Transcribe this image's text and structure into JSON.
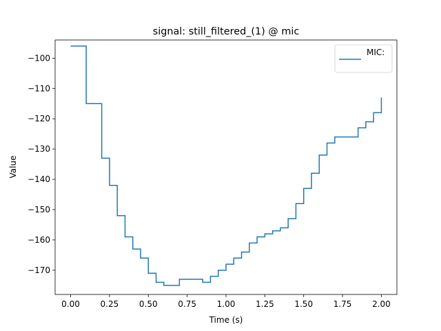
{
  "chart_data": {
    "type": "line",
    "title": "signal: still_filtered_(1) @ mic",
    "xlabel": "Time (s)",
    "ylabel": "Value",
    "xlim": [
      -0.1,
      2.1
    ],
    "ylim": [
      -178,
      -94
    ],
    "x_ticks": [
      0.0,
      0.25,
      0.5,
      0.75,
      1.0,
      1.25,
      1.5,
      1.75,
      2.0
    ],
    "x_tick_labels": [
      "0.00",
      "0.25",
      "0.50",
      "0.75",
      "1.00",
      "1.25",
      "1.50",
      "1.75",
      "2.00"
    ],
    "y_ticks": [
      -100,
      -110,
      -120,
      -130,
      -140,
      -150,
      -160,
      -170
    ],
    "y_tick_labels": [
      "−100",
      "−110",
      "−120",
      "−130",
      "−140",
      "−150",
      "−160",
      "−170"
    ],
    "grid": false,
    "legend_position": "top-right",
    "step": true,
    "series": [
      {
        "name": "MIC:",
        "color": "#1f77b4",
        "x": [
          0.0,
          0.1,
          0.2,
          0.25,
          0.3,
          0.35,
          0.4,
          0.45,
          0.5,
          0.55,
          0.6,
          0.65,
          0.7,
          0.8,
          0.85,
          0.9,
          0.95,
          1.0,
          1.05,
          1.1,
          1.15,
          1.2,
          1.25,
          1.3,
          1.35,
          1.4,
          1.45,
          1.5,
          1.55,
          1.6,
          1.65,
          1.7,
          1.8,
          1.85,
          1.9,
          1.95,
          2.0
        ],
        "y": [
          -96,
          -115,
          -133,
          -142,
          -152,
          -159,
          -163,
          -166,
          -171,
          -174,
          -175,
          -175,
          -173,
          -173,
          -174,
          -172,
          -170,
          -168,
          -166,
          -164,
          -161,
          -159,
          -158,
          -157,
          -156,
          -153,
          -148,
          -143,
          -138,
          -132,
          -128,
          -126,
          -126,
          -123,
          -121,
          -118,
          -113
        ]
      }
    ]
  }
}
